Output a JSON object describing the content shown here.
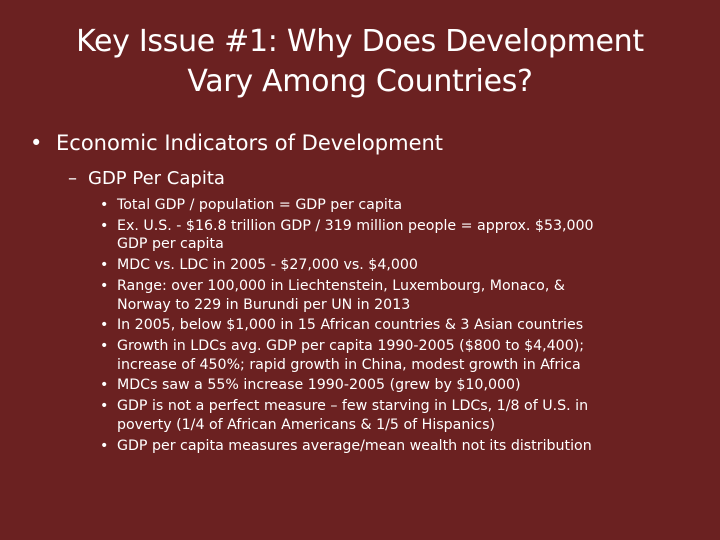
{
  "title": {
    "line1": "Key Issue #1: Why Does Development",
    "line2": "Vary Among Countries?"
  },
  "level1": {
    "bullet": "•",
    "text": "Economic Indicators of Development"
  },
  "level2": {
    "bullet": "–",
    "text": "GDP Per Capita"
  },
  "level3_bullet": "•",
  "level3": [
    {
      "lines": [
        "Total GDP / population = GDP per capita"
      ]
    },
    {
      "lines": [
        "Ex. U.S. - $16.8 trillion GDP / 319 million people = approx. $53,000",
        "GDP per capita"
      ]
    },
    {
      "lines": [
        "MDC vs. LDC in 2005 - $27,000 vs. $4,000"
      ]
    },
    {
      "lines": [
        "Range: over 100,000 in Liechtenstein, Luxembourg, Monaco, &",
        "Norway to 229 in Burundi per UN in 2013"
      ]
    },
    {
      "lines": [
        "In 2005, below $1,000 in 15 African countries & 3 Asian countries"
      ]
    },
    {
      "lines": [
        "Growth in LDCs avg. GDP per capita 1990-2005 ($800 to $4,400);",
        "increase of 450%; rapid growth in China, modest growth in Africa"
      ]
    },
    {
      "lines": [
        "MDCs saw a 55% increase 1990-2005 (grew by $10,000)"
      ]
    },
    {
      "lines": [
        "GDP is not a perfect measure – few starving in LDCs, 1/8 of U.S. in",
        "poverty (1/4 of African Americans & 1/5 of Hispanics)"
      ]
    },
    {
      "lines": [
        "GDP per capita measures average/mean wealth not its distribution"
      ]
    }
  ]
}
